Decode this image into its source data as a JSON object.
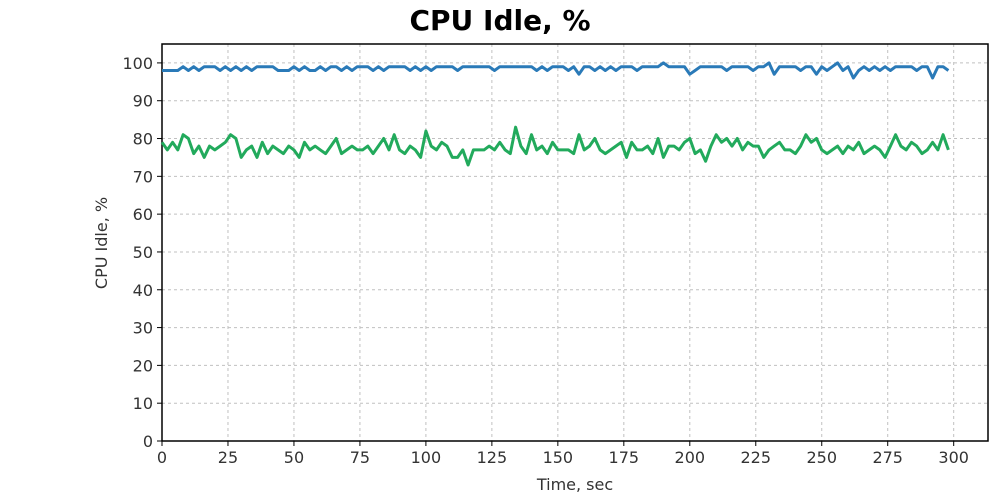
{
  "chart_data": {
    "type": "line",
    "title": "CPU Idle, %",
    "xlabel": "Time, sec",
    "ylabel": "CPU Idle, %",
    "xlim": [
      0,
      313
    ],
    "ylim": [
      0,
      105
    ],
    "xticks": [
      0,
      25,
      50,
      75,
      100,
      125,
      150,
      175,
      200,
      225,
      250,
      275,
      300
    ],
    "yticks": [
      0,
      10,
      20,
      30,
      40,
      50,
      60,
      70,
      80,
      90,
      100
    ],
    "grid": true,
    "legend": "none",
    "x_start": 0,
    "x_step": 2,
    "series": [
      {
        "name": "series-blue",
        "color": "#2a7ab8",
        "values": [
          98,
          98,
          98,
          98,
          99,
          98,
          99,
          98,
          99,
          99,
          99,
          98,
          99,
          98,
          99,
          98,
          99,
          98,
          99,
          99,
          99,
          99,
          98,
          98,
          98,
          99,
          98,
          99,
          98,
          98,
          99,
          98,
          99,
          99,
          98,
          99,
          98,
          99,
          99,
          99,
          98,
          99,
          98,
          99,
          99,
          99,
          99,
          98,
          99,
          98,
          99,
          98,
          99,
          99,
          99,
          99,
          98,
          99,
          99,
          99,
          99,
          99,
          99,
          98,
          99,
          99,
          99,
          99,
          99,
          99,
          99,
          98,
          99,
          98,
          99,
          99,
          99,
          98,
          99,
          97,
          99,
          99,
          98,
          99,
          98,
          99,
          98,
          99,
          99,
          99,
          98,
          99,
          99,
          99,
          99,
          100,
          99,
          99,
          99,
          99,
          97,
          98,
          99,
          99,
          99,
          99,
          99,
          98,
          99,
          99,
          99,
          99,
          98,
          99,
          99,
          100,
          97,
          99,
          99,
          99,
          99,
          98,
          99,
          99,
          97,
          99,
          98,
          99,
          100,
          98,
          99,
          96,
          98,
          99,
          98,
          99,
          98,
          99,
          98,
          99,
          99,
          99,
          99,
          98,
          99,
          99,
          96,
          99,
          99,
          98
        ]
      },
      {
        "name": "series-green",
        "color": "#22aa5c",
        "values": [
          79,
          77,
          79,
          77,
          81,
          80,
          76,
          78,
          75,
          78,
          77,
          78,
          79,
          81,
          80,
          75,
          77,
          78,
          75,
          79,
          76,
          78,
          77,
          76,
          78,
          77,
          75,
          79,
          77,
          78,
          77,
          76,
          78,
          80,
          76,
          77,
          78,
          77,
          77,
          78,
          76,
          78,
          80,
          77,
          81,
          77,
          76,
          78,
          77,
          75,
          82,
          78,
          77,
          79,
          78,
          75,
          75,
          77,
          73,
          77,
          77,
          77,
          78,
          77,
          79,
          77,
          76,
          83,
          78,
          76,
          81,
          77,
          78,
          76,
          79,
          77,
          77,
          77,
          76,
          81,
          77,
          78,
          80,
          77,
          76,
          77,
          78,
          79,
          75,
          79,
          77,
          77,
          78,
          76,
          80,
          75,
          78,
          78,
          77,
          79,
          80,
          76,
          77,
          74,
          78,
          81,
          79,
          80,
          78,
          80,
          77,
          79,
          78,
          78,
          75,
          77,
          78,
          79,
          77,
          77,
          76,
          78,
          81,
          79,
          80,
          77,
          76,
          77,
          78,
          76,
          78,
          77,
          79,
          76,
          77,
          78,
          77,
          75,
          78,
          81,
          78,
          77,
          79,
          78,
          76,
          77,
          79,
          77,
          81,
          77
        ]
      }
    ]
  }
}
